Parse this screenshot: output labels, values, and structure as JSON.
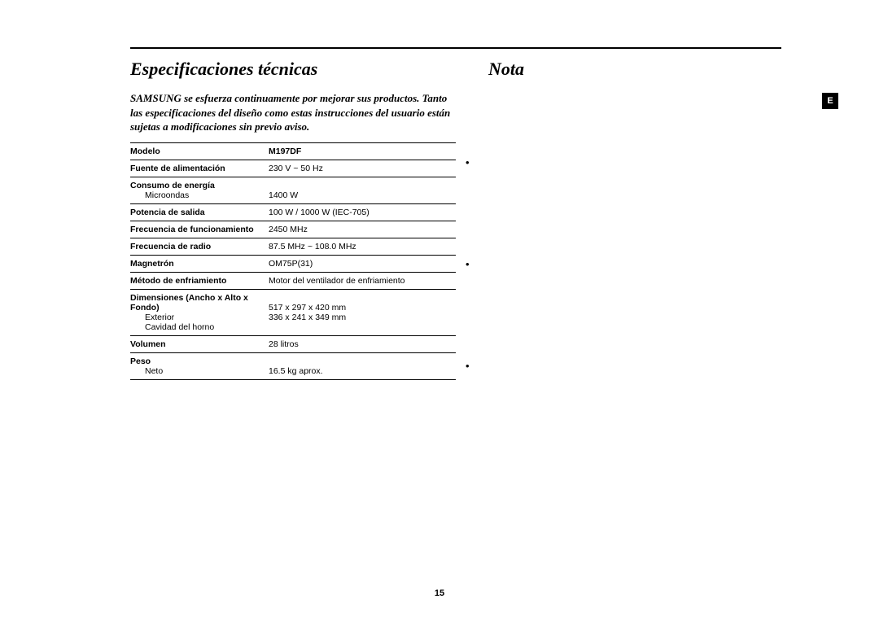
{
  "page_number": "15",
  "badge": "E",
  "left": {
    "title": "Especificaciones técnicas",
    "intro": "SAMSUNG se esfuerza continuamente por mejorar sus productos. Tanto las especificaciones del diseño como estas instrucciones del usuario están sujetas a modificaciones sin previo aviso.",
    "rows": {
      "modelo_label": "Modelo",
      "modelo_value": "M197DF",
      "fuente_label": "Fuente de alimentación",
      "fuente_value": "230 V ~ 50 Hz",
      "consumo_label": "Consumo de energía",
      "consumo_sub": "Microondas",
      "consumo_value": "1400 W",
      "potencia_label": "Potencia de salida",
      "potencia_value": "100 W / 1000 W (IEC-705)",
      "frec_func_label": "Frecuencia de funcionamiento",
      "frec_func_value": "2450 MHz",
      "frec_radio_label": "Frecuencia de radio",
      "frec_radio_value": "87.5 MHz ~ 108.0 MHz",
      "magnetron_label": "Magnetrón",
      "magnetron_value": "OM75P(31)",
      "enfri_label": "Método de enfriamiento",
      "enfri_value": "Motor del ventilador de enfriamiento",
      "dim_label_1": "Dimensiones (Ancho x Alto x",
      "dim_label_2": "Fondo)",
      "dim_sub1": "Exterior",
      "dim_sub2": "Cavidad del horno",
      "dim_val1": "517 x 297 x 420 mm",
      "dim_val2": "336 x 241 x 349 mm",
      "vol_label": "Volumen",
      "vol_value": "28 litros",
      "peso_label": "Peso",
      "peso_sub": "Neto",
      "peso_value": "16.5 kg aprox."
    }
  },
  "right": {
    "title": "Nota"
  },
  "colors": {
    "text": "#000000",
    "background": "#ffffff",
    "rule": "#000000"
  },
  "fonts": {
    "title_family": "Times New Roman",
    "title_style": "italic bold",
    "title_size_pt": 16,
    "body_family": "Arial",
    "body_size_pt": 8
  }
}
